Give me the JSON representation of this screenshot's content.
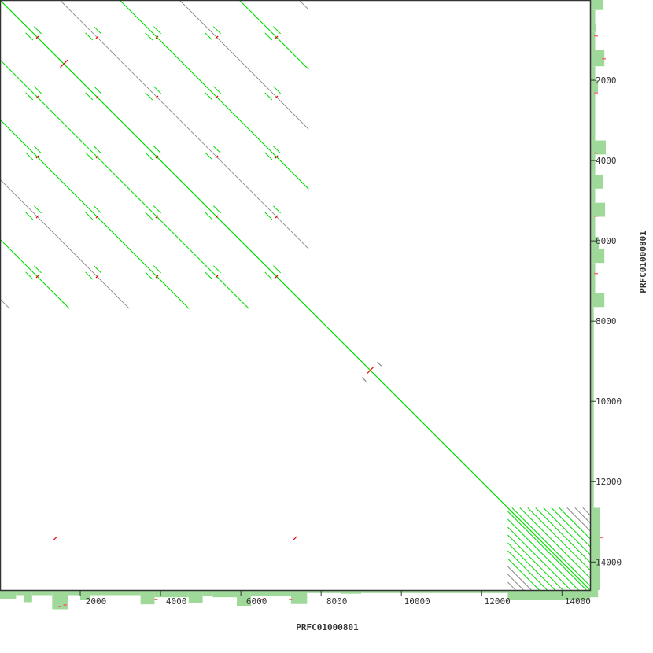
{
  "chart_data": {
    "type": "scatter",
    "plot_kind": "dot plot (self alignment)",
    "xlabel": "PRFC01000801",
    "ylabel": "PRFC01000801",
    "xlim": [
      0,
      14700
    ],
    "ylim": [
      0,
      14700
    ],
    "y_direction": "top-to-bottom",
    "xticks": [
      2000,
      4000,
      6000,
      8000,
      10000,
      12000,
      14000
    ],
    "yticks": [
      2000,
      4000,
      6000,
      8000,
      10000,
      12000,
      14000
    ],
    "xtick_labels": [
      "2000",
      "4000",
      "6000",
      "8000",
      "10000",
      "12000",
      "14000"
    ],
    "ytick_labels": [
      "2000",
      "4000",
      "6000",
      "8000",
      "10000",
      "12000",
      "14000"
    ],
    "colors": {
      "forward_match": "#00dd00",
      "weak_match": "#8a8a8a",
      "reverse_match": "#ee0000",
      "coverage": "#9fd99a",
      "coverage_highlight": "#f07070",
      "frame": "#333333"
    },
    "main_diagonal": {
      "start": 0,
      "end": 14700
    },
    "repeat_block_1": {
      "start": 0,
      "end": 7690,
      "period": 1490,
      "offsets": [
        {
          "k": -5,
          "strength": "weak"
        },
        {
          "k": -4,
          "strength": "strong"
        },
        {
          "k": -3,
          "strength": "weak"
        },
        {
          "k": -2,
          "strength": "strong"
        },
        {
          "k": -1,
          "strength": "strong"
        },
        {
          "k": 1,
          "strength": "weak"
        },
        {
          "k": 2,
          "strength": "strong"
        },
        {
          "k": 3,
          "strength": "weak"
        },
        {
          "k": 4,
          "strength": "strong"
        },
        {
          "k": 5,
          "strength": "weak"
        }
      ]
    },
    "repeat_block_2": {
      "start": 12650,
      "end": 14700,
      "period": 196,
      "weak_beyond": 1300
    },
    "other_segments": [
      {
        "x1": 9020,
        "y1": 9400,
        "x2": 9120,
        "y2": 9500,
        "kind": "weak"
      },
      {
        "x1": 9400,
        "y1": 9020,
        "x2": 9500,
        "y2": 9120,
        "kind": "weak"
      },
      {
        "x1": 9150,
        "y1": 9300,
        "x2": 9300,
        "y2": 9150,
        "kind": "reverse"
      },
      {
        "x1": 1330,
        "y1": 13460,
        "x2": 1430,
        "y2": 13360,
        "kind": "reverse"
      },
      {
        "x1": 7300,
        "y1": 13460,
        "x2": 7400,
        "y2": 13360,
        "kind": "reverse"
      },
      {
        "x1": 1500,
        "y1": 1680,
        "x2": 1700,
        "y2": 1480,
        "kind": "reverse"
      }
    ],
    "x_coverage": [
      [
        0,
        400,
        2
      ],
      [
        400,
        600,
        1
      ],
      [
        600,
        800,
        3
      ],
      [
        800,
        1300,
        1
      ],
      [
        1300,
        1700,
        5
      ],
      [
        1700,
        2000,
        1
      ],
      [
        2000,
        2250,
        2.4
      ],
      [
        2250,
        3500,
        1
      ],
      [
        3500,
        3850,
        3.6
      ],
      [
        3850,
        4700,
        1.6
      ],
      [
        4700,
        5050,
        3.3
      ],
      [
        5050,
        5300,
        1.2
      ],
      [
        5300,
        5900,
        1.6
      ],
      [
        5900,
        6250,
        4
      ],
      [
        6250,
        7250,
        1.2
      ],
      [
        7250,
        7650,
        3.5
      ],
      [
        7650,
        8500,
        0.4
      ],
      [
        8500,
        9000,
        0.6
      ],
      [
        9000,
        12650,
        0.4
      ],
      [
        12650,
        14700,
        2.4
      ],
      [
        14700,
        14900,
        1.6
      ]
    ],
    "y_coverage": [
      [
        0,
        250,
        3.2
      ],
      [
        250,
        600,
        1
      ],
      [
        600,
        800,
        1.3
      ],
      [
        800,
        1250,
        1
      ],
      [
        1250,
        1650,
        3.6
      ],
      [
        1650,
        2000,
        1
      ],
      [
        2000,
        2300,
        1.8
      ],
      [
        2300,
        3500,
        1
      ],
      [
        3500,
        3850,
        4
      ],
      [
        3850,
        4350,
        1
      ],
      [
        4350,
        4700,
        3.2
      ],
      [
        4700,
        5050,
        1
      ],
      [
        5050,
        5400,
        3.8
      ],
      [
        5400,
        5900,
        1
      ],
      [
        5900,
        6200,
        2
      ],
      [
        6200,
        6550,
        3.6
      ],
      [
        6550,
        7300,
        1
      ],
      [
        7300,
        7650,
        3.6
      ],
      [
        7650,
        12650,
        0.6
      ],
      [
        12650,
        14700,
        2.4
      ]
    ]
  }
}
